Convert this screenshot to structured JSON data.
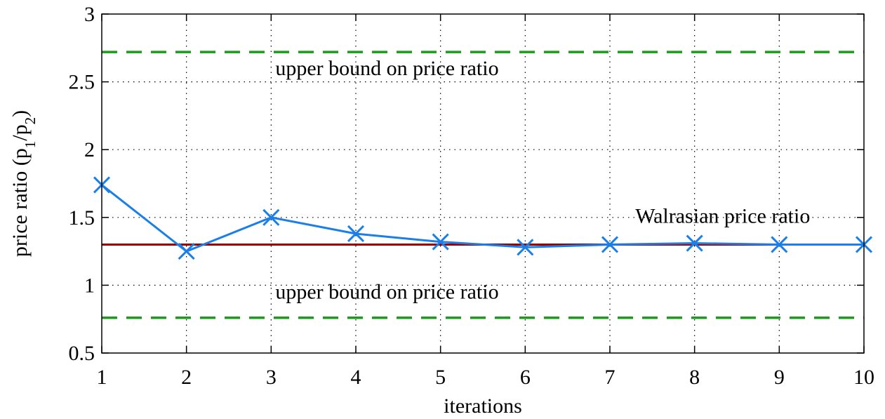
{
  "chart_data": {
    "type": "line",
    "title": "",
    "xlabel": "iterations",
    "ylabel": {
      "base": "price ratio (p",
      "sub1": "1",
      "mid": "/p",
      "sub2": "2",
      "end": ")"
    },
    "xlim": [
      1,
      10
    ],
    "ylim": [
      0.5,
      3
    ],
    "xticks": [
      "1",
      "2",
      "3",
      "4",
      "5",
      "6",
      "7",
      "8",
      "9",
      "10"
    ],
    "yticks": [
      "0.5",
      "1",
      "1.5",
      "2",
      "2.5",
      "3"
    ],
    "grid": true,
    "series": [
      {
        "kind": "marker-line",
        "marker": "x",
        "color": "#1a7fe8",
        "x": [
          1,
          2,
          3,
          4,
          5,
          6,
          7,
          8,
          9,
          10
        ],
        "y": [
          1.74,
          1.25,
          1.5,
          1.38,
          1.32,
          1.28,
          1.3,
          1.31,
          1.3,
          1.3
        ]
      },
      {
        "name": "Walrasian price ratio",
        "kind": "reference",
        "color": "#9b0000",
        "y": 1.3
      },
      {
        "name": "upper bound on price ratio",
        "kind": "bound",
        "color": "#1e9a1e",
        "y": 2.72
      },
      {
        "name": "upper bound on price ratio",
        "kind": "bound",
        "color": "#1e9a1e",
        "y": 0.76
      }
    ],
    "annotations": [
      {
        "text": "upper bound on price ratio",
        "x": 3.05,
        "y": 2.55
      },
      {
        "text": "Walrasian price ratio",
        "x": 7.3,
        "y": 1.46
      },
      {
        "text": "upper bound on price ratio",
        "x": 3.05,
        "y": 0.9
      }
    ]
  }
}
